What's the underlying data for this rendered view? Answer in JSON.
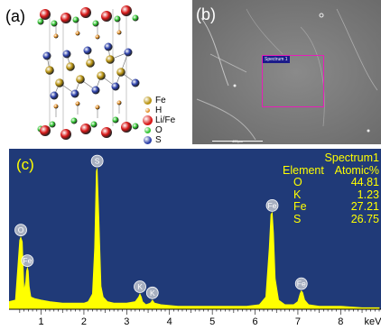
{
  "panel_a": {
    "label": "(a)",
    "legend": [
      {
        "symbol": "Fe",
        "color": "#b8920e",
        "size": 9
      },
      {
        "symbol": "H",
        "color": "#e08a1f",
        "size": 5
      },
      {
        "symbol": "Li/Fe",
        "color": "#d81818",
        "size": 11
      },
      {
        "symbol": "O",
        "color": "#2fc42f",
        "size": 7
      },
      {
        "symbol": "S",
        "color": "#2a3ea8",
        "size": 9
      }
    ]
  },
  "panel_b": {
    "label": "(b)",
    "box_label": "Spectrum 1",
    "scale_label": "400μm"
  },
  "panel_c": {
    "label": "(c)",
    "colors": {
      "background": "#203a78",
      "spectrum": "#ffff00",
      "peak_marker": "#c0c4cc",
      "text": "#ffff00"
    },
    "table": {
      "title": "Spectrum1",
      "col_element": "Element",
      "col_value": "Atomic%",
      "rows": [
        {
          "element": "O",
          "value": "44.81"
        },
        {
          "element": "K",
          "value": "1.23"
        },
        {
          "element": "Fe",
          "value": "27.21"
        },
        {
          "element": "S",
          "value": "26.75"
        }
      ]
    }
  },
  "chart_data": {
    "type": "line",
    "title": "",
    "xlabel": "keV",
    "ylabel": "",
    "xlim": [
      0.25,
      8.9
    ],
    "ylim": [
      0,
      100
    ],
    "x_ticks": [
      1,
      2,
      3,
      4,
      5,
      6,
      7,
      8
    ],
    "series": [
      {
        "x": [
          0.25,
          0.4,
          0.46,
          0.5,
          0.525,
          0.56,
          0.6,
          0.64,
          0.66,
          0.68,
          0.7,
          0.72,
          0.76,
          0.85,
          1.0,
          1.2,
          1.5,
          1.8,
          2.0,
          2.1,
          2.2,
          2.25,
          2.29,
          2.31,
          2.35,
          2.4,
          2.45,
          2.55,
          2.7,
          3.0,
          3.2,
          3.28,
          3.31,
          3.34,
          3.37,
          3.45,
          3.55,
          3.58,
          3.6,
          3.65,
          3.8,
          4.2,
          5.0,
          5.8,
          6.1,
          6.25,
          6.33,
          6.37,
          6.4,
          6.43,
          6.47,
          6.55,
          6.7,
          6.9,
          7.0,
          7.05,
          7.08,
          7.11,
          7.16,
          7.25,
          7.5,
          8.0,
          8.5,
          8.9
        ],
        "y": [
          5,
          6,
          30,
          45,
          47,
          44,
          12,
          18,
          25,
          27,
          25,
          15,
          8,
          7,
          6,
          5,
          4,
          4,
          4,
          5,
          10,
          40,
          90,
          92,
          60,
          15,
          8,
          5,
          4,
          4,
          5,
          8,
          10,
          8,
          5,
          3,
          4,
          5,
          6,
          4,
          3,
          2,
          2,
          2,
          3,
          8,
          40,
          62,
          63,
          50,
          20,
          6,
          3,
          3,
          5,
          10,
          12,
          11,
          6,
          3,
          2,
          2,
          1,
          1
        ]
      }
    ],
    "peaks": [
      {
        "label": "O",
        "x": 0.525,
        "y": 47
      },
      {
        "label": "Fe",
        "x": 0.68,
        "y": 27
      },
      {
        "label": "S",
        "x": 2.31,
        "y": 92
      },
      {
        "label": "K",
        "x": 3.31,
        "y": 10
      },
      {
        "label": "K",
        "x": 3.6,
        "y": 6
      },
      {
        "label": "Fe",
        "x": 6.4,
        "y": 63
      },
      {
        "label": "Fe",
        "x": 7.08,
        "y": 12
      }
    ]
  }
}
